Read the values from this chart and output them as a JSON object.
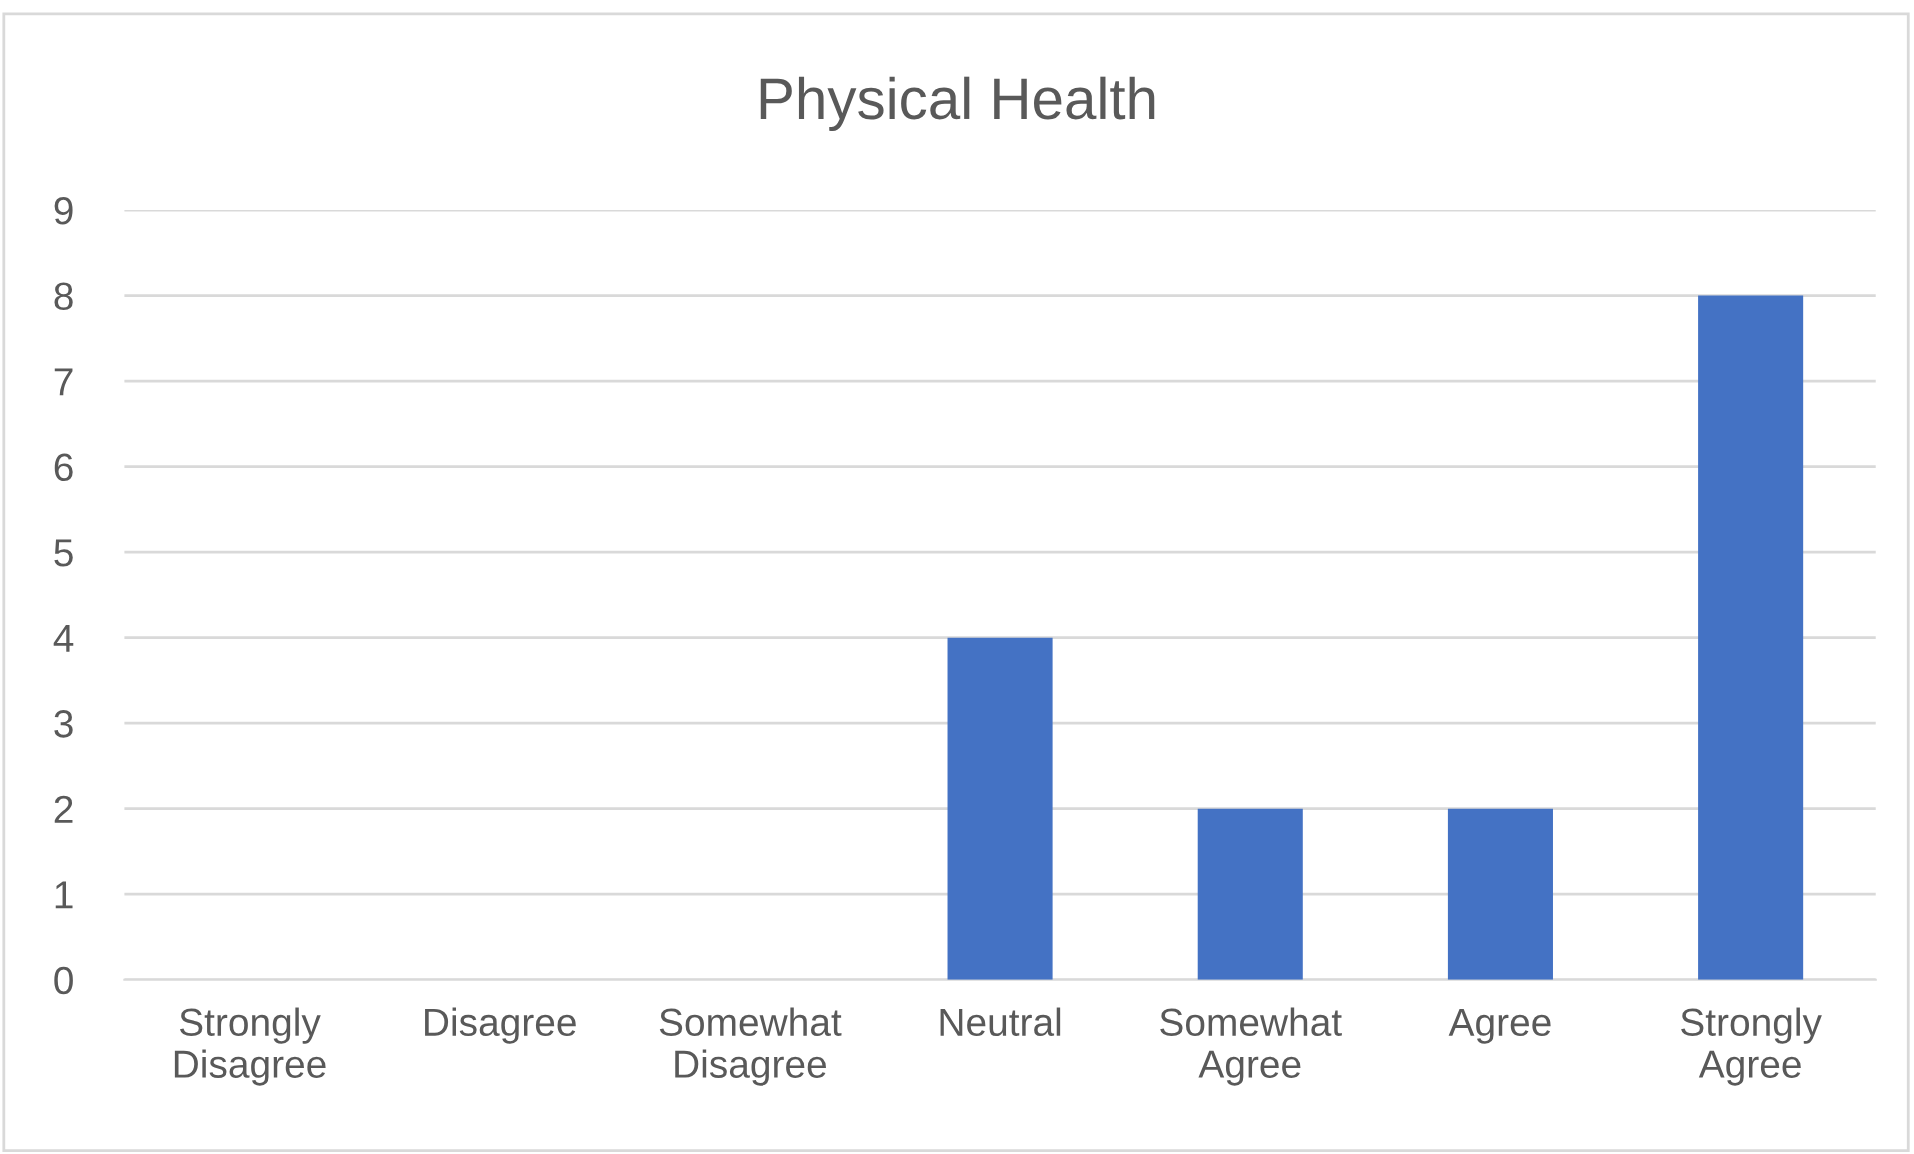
{
  "chart_data": {
    "type": "bar",
    "title": "Physical Health",
    "categories": [
      "Strongly\nDisagree",
      "Disagree",
      "Somewhat\nDisagree",
      "Neutral",
      "Somewhat\nAgree",
      "Agree",
      "Strongly\nAgree"
    ],
    "values": [
      0,
      0,
      0,
      4,
      2,
      2,
      8
    ],
    "color": "#4472c4",
    "ylim": [
      0,
      9
    ],
    "yticks": [
      0,
      1,
      2,
      3,
      4,
      5,
      6,
      7,
      8,
      9
    ],
    "grid": "y",
    "legend": false
  }
}
